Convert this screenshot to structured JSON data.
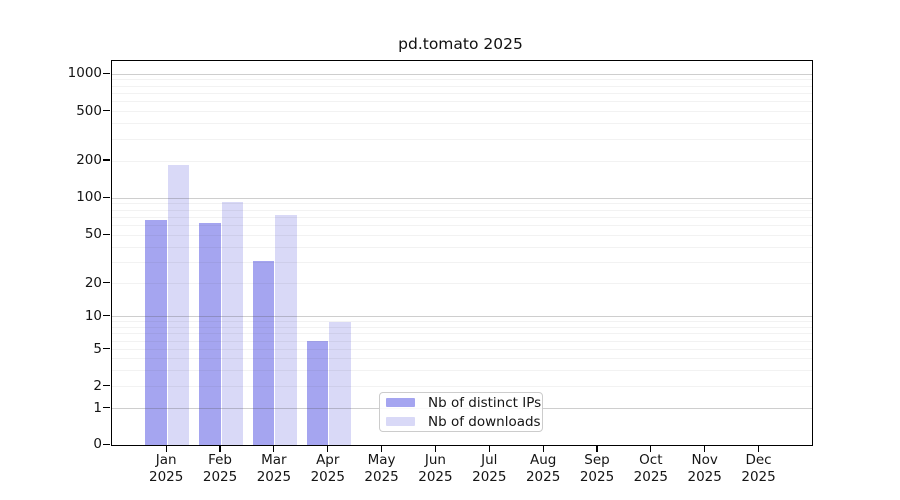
{
  "title": "pd.tomato 2025",
  "legend": {
    "items": [
      {
        "label": "Nb of distinct IPs",
        "color": "#a5a5f0"
      },
      {
        "label": "Nb of downloads",
        "color": "#d9d9f7"
      }
    ]
  },
  "chart_data": {
    "type": "bar",
    "title": "pd.tomato 2025",
    "xlabel": "",
    "ylabel": "",
    "categories": [
      "Jan 2025",
      "Feb 2025",
      "Mar 2025",
      "Apr 2025",
      "May 2025",
      "Jun 2025",
      "Jul 2025",
      "Aug 2025",
      "Sep 2025",
      "Oct 2025",
      "Nov 2025",
      "Dec 2025"
    ],
    "series": [
      {
        "name": "Nb of distinct IPs",
        "color": "#a5a5f0",
        "values": [
          67,
          63,
          31,
          6,
          0,
          0,
          0,
          0,
          0,
          0,
          0,
          0
        ]
      },
      {
        "name": "Nb of downloads",
        "color": "#d9d9f7",
        "values": [
          185,
          94,
          73,
          9,
          0,
          0,
          0,
          0,
          0,
          0,
          0,
          0
        ]
      }
    ],
    "y_scale": "log-like with zero baseline (asinh/symlog style)",
    "y_tick_labels": [
      "1000",
      "500",
      "200",
      "100",
      "50",
      "20",
      "10",
      "5",
      "2",
      "1",
      "0"
    ],
    "y_tick_values": [
      1000,
      500,
      200,
      100,
      50,
      20,
      10,
      5,
      2,
      1,
      0
    ],
    "ylim": [
      0,
      1500
    ],
    "grid": "horizontal; stronger lines at powers of 10, faint minor lines between",
    "legend_position": "inside plot, lower middle"
  }
}
